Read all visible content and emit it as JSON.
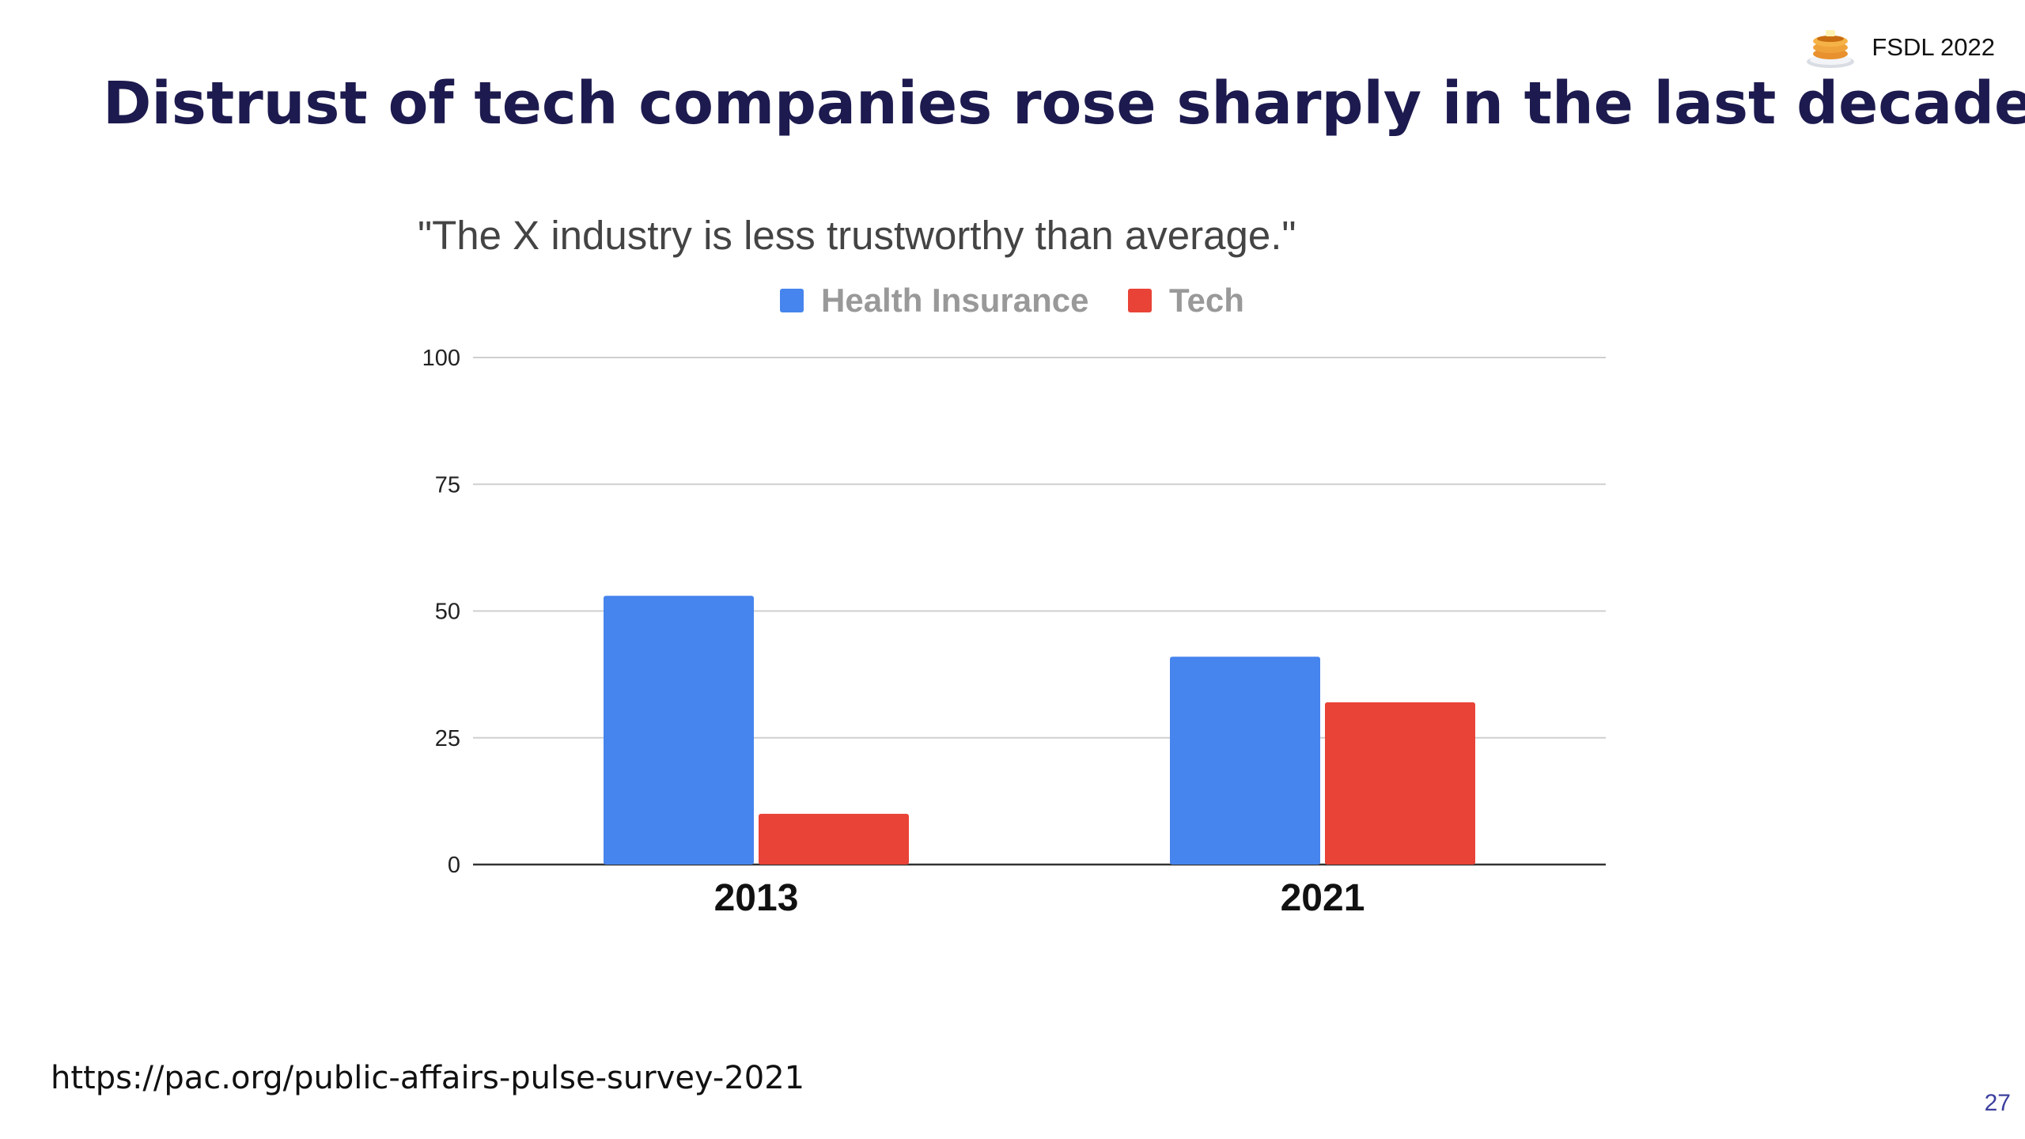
{
  "slide": {
    "title": "Distrust of tech companies rose sharply in the last decade.",
    "brand": "FSDL 2022",
    "source": "https://pac.org/public-affairs-pulse-survey-2021",
    "page_number": "27"
  },
  "colors": {
    "title": "#1c1a4e",
    "health_insurance": "#4684ee",
    "tech": "#e94237"
  },
  "chart_data": {
    "type": "bar",
    "title": "\"The X industry is less trustworthy than average.\"",
    "categories": [
      "2013",
      "2021"
    ],
    "series": [
      {
        "name": "Health Insurance",
        "values": [
          53,
          41
        ],
        "color": "#4684ee"
      },
      {
        "name": "Tech",
        "values": [
          10,
          32
        ],
        "color": "#e94237"
      }
    ],
    "yticks": [
      0,
      25,
      50,
      75,
      100
    ],
    "ylim": [
      0,
      100
    ],
    "grid": true,
    "legend": "top"
  }
}
